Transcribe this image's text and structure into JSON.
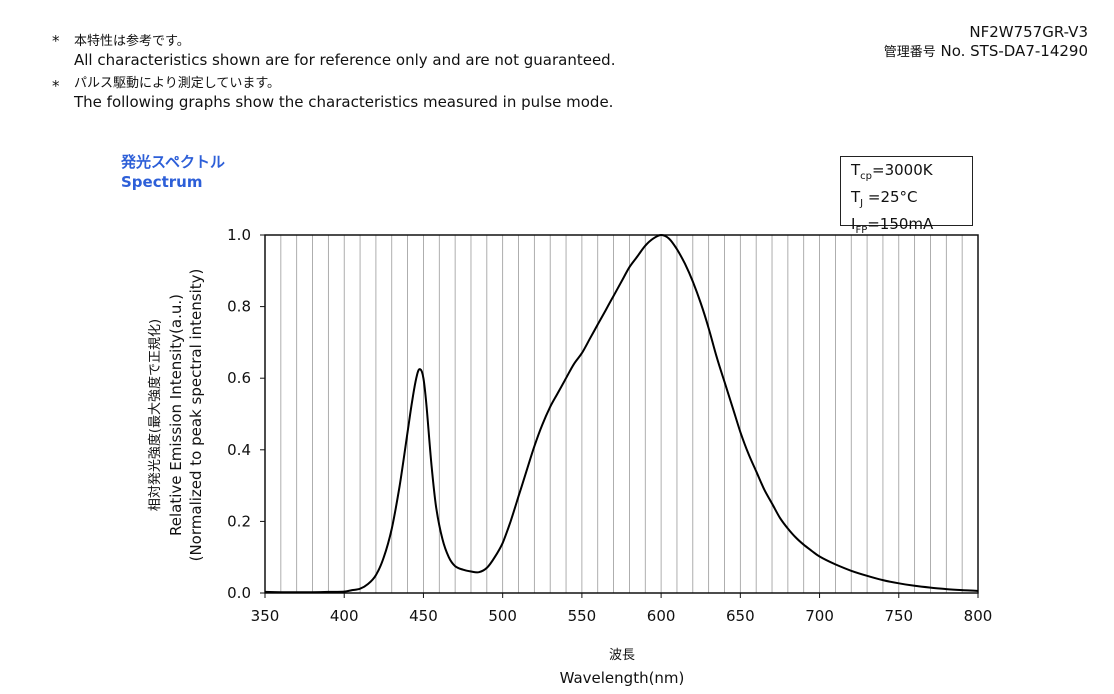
{
  "notes": [
    {
      "bullet": "*",
      "jp": "本特性は参考です。",
      "en": "All characteristics shown are for reference only and are not guaranteed."
    },
    {
      "bullet": "*",
      "jp": "パルス駆動により測定しています。",
      "en": "The following graphs show the characteristics measured in pulse mode."
    }
  ],
  "doc": {
    "model": "NF2W757GR-V3",
    "control_label": "管理番号",
    "number": "No. STS-DA7-14290"
  },
  "conditions": {
    "tcp": {
      "sym": "T",
      "sub": "cp",
      "val": "=3000K"
    },
    "tj": {
      "sym": "T",
      "sub": "J",
      "val": " =25°C"
    },
    "ifp": {
      "sym": "I",
      "sub": "FP",
      "val": "=150mA"
    }
  },
  "chart_data": {
    "type": "line",
    "title_jp": "発光スペクトル",
    "title": "Spectrum",
    "ylabel_jp": "相対発光強度(最大強度で正規化)",
    "ylabel": "Relative Emission Intensity(a.u.)",
    "ylabel_note": "(Normalized to peak spectral intensity)",
    "xlabel_jp": "波長",
    "xlabel": "Wavelength(nm)",
    "xlim": [
      350,
      800
    ],
    "ylim": [
      0,
      1
    ],
    "xticks": [
      "350",
      "400",
      "450",
      "500",
      "550",
      "600",
      "650",
      "700",
      "750",
      "800"
    ],
    "yticks": [
      "0.0",
      "0.2",
      "0.4",
      "0.6",
      "0.8",
      "1.0"
    ],
    "grid": "vertical",
    "series": [
      {
        "x": [
          350,
          360,
          370,
          380,
          390,
          400,
          405,
          410,
          415,
          420,
          425,
          430,
          435,
          440,
          443,
          446,
          448,
          450,
          452,
          455,
          458,
          462,
          466,
          470,
          475,
          480,
          485,
          490,
          495,
          500,
          505,
          510,
          515,
          520,
          525,
          530,
          535,
          540,
          545,
          550,
          555,
          560,
          565,
          570,
          575,
          580,
          585,
          590,
          595,
          600,
          605,
          610,
          615,
          620,
          625,
          630,
          635,
          640,
          645,
          650,
          655,
          660,
          665,
          670,
          675,
          680,
          685,
          690,
          695,
          700,
          710,
          720,
          730,
          740,
          750,
          760,
          770,
          780,
          790,
          800
        ],
        "y": [
          0.003,
          0.002,
          0.002,
          0.002,
          0.003,
          0.004,
          0.008,
          0.012,
          0.025,
          0.05,
          0.1,
          0.18,
          0.3,
          0.45,
          0.54,
          0.61,
          0.625,
          0.6,
          0.52,
          0.36,
          0.24,
          0.15,
          0.1,
          0.075,
          0.065,
          0.06,
          0.058,
          0.07,
          0.1,
          0.14,
          0.2,
          0.27,
          0.34,
          0.41,
          0.47,
          0.52,
          0.56,
          0.6,
          0.64,
          0.67,
          0.71,
          0.75,
          0.79,
          0.83,
          0.87,
          0.91,
          0.94,
          0.97,
          0.99,
          1.0,
          0.99,
          0.96,
          0.92,
          0.87,
          0.81,
          0.74,
          0.66,
          0.59,
          0.52,
          0.45,
          0.39,
          0.34,
          0.29,
          0.25,
          0.21,
          0.18,
          0.155,
          0.135,
          0.118,
          0.102,
          0.08,
          0.062,
          0.048,
          0.036,
          0.027,
          0.02,
          0.015,
          0.011,
          0.008,
          0.006
        ]
      }
    ]
  }
}
